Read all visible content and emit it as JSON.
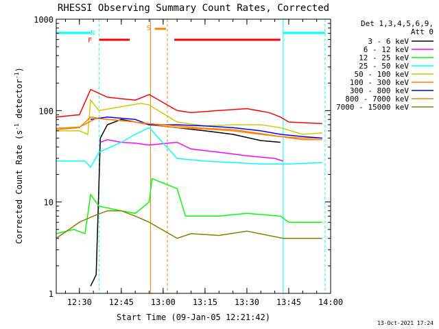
{
  "chart_data": {
    "type": "line",
    "title": "RHESSI Observing Summary Count Rates, Corrected",
    "xlabel": "Start Time (09-Jan-05 12:21:42)",
    "ylabel_prefix": "Corrected Count Rate (s",
    "ylabel_sup1": "-1",
    "ylabel_mid": " detector",
    "ylabel_sup2": "-1",
    "ylabel_suffix": ")",
    "y_scale": "log",
    "ylim": [
      1,
      1000
    ],
    "xlim": [
      "12:21:42",
      "14:00:00"
    ],
    "x_ticks": [
      "12:30",
      "12:45",
      "13:00",
      "13:15",
      "13:30",
      "13:45",
      "14:00"
    ],
    "y_ticks": [
      "1",
      "10",
      "100",
      "1000"
    ],
    "legend_header": [
      "Det 1,3,4,5,6,9,",
      "Att 0"
    ],
    "legend_position": "right",
    "timestamp": "13-Oct-2021 17:24",
    "flags": [
      {
        "label": "N",
        "color": "#00ffff",
        "x": "12:37:00"
      },
      {
        "label": "F",
        "color": "#ff0000",
        "x": "12:36:00"
      },
      {
        "label": "S",
        "color": "#ff8000",
        "x": "12:57:00"
      }
    ],
    "flag_bars": [
      {
        "name": "night",
        "color": "#00ffff",
        "segments": [
          [
            "12:21:42",
            "12:34:00"
          ],
          [
            "13:43:00",
            "13:58:00"
          ]
        ]
      },
      {
        "name": "flare",
        "color": "#ff0000",
        "segments": [
          [
            "12:37:00",
            "12:48:00"
          ],
          [
            "13:04:00",
            "13:42:00"
          ]
        ]
      },
      {
        "name": "saa",
        "color": "#ff8000",
        "segments": [
          [
            "12:57:00",
            "13:01:00"
          ]
        ]
      }
    ],
    "gap_lines": [
      {
        "x": "12:37:00",
        "color": "#00ffff",
        "style": "dashed"
      },
      {
        "x": "12:55:30",
        "color": "#ff8000",
        "style": "solid"
      },
      {
        "x": "13:01:30",
        "color": "#ff8000",
        "style": "dashed"
      },
      {
        "x": "13:43:00",
        "color": "#00ffff",
        "style": "solid"
      },
      {
        "x": "13:58:00",
        "color": "#00ffff",
        "style": "dashed"
      }
    ],
    "series": [
      {
        "name": "3 - 6 keV",
        "color": "#000000",
        "points": [
          [
            "12:34:00",
            1.2
          ],
          [
            "12:36:00",
            1.6
          ],
          [
            "12:37:30",
            50
          ],
          [
            "12:40:00",
            70
          ],
          [
            "12:45:00",
            80
          ],
          [
            "12:50:00",
            75
          ],
          [
            "12:55:00",
            70
          ],
          [
            "13:05:00",
            65
          ],
          [
            "13:15:00",
            60
          ],
          [
            "13:25:00",
            55
          ],
          [
            "13:35:00",
            47
          ],
          [
            "13:42:00",
            45
          ]
        ]
      },
      {
        "name": "6 - 12 keV",
        "color": "#ff00ff",
        "points": [
          [
            "12:37:30",
            45
          ],
          [
            "12:40:00",
            48
          ],
          [
            "12:45:00",
            45
          ],
          [
            "12:50:00",
            44
          ],
          [
            "12:55:00",
            42
          ],
          [
            "13:05:00",
            45
          ],
          [
            "13:10:00",
            38
          ],
          [
            "13:20:00",
            35
          ],
          [
            "13:30:00",
            32
          ],
          [
            "13:40:00",
            30
          ],
          [
            "13:43:00",
            28
          ]
        ]
      },
      {
        "name": "12 - 25 keV",
        "color": "#00ff00",
        "points": [
          [
            "12:21:42",
            4.5
          ],
          [
            "12:28:00",
            5.0
          ],
          [
            "12:32:00",
            4.5
          ],
          [
            "12:34:00",
            12
          ],
          [
            "12:37:00",
            9
          ],
          [
            "12:45:00",
            8
          ],
          [
            "12:50:00",
            7.5
          ],
          [
            "12:55:00",
            10
          ],
          [
            "12:56:00",
            18
          ],
          [
            "13:05:00",
            14
          ],
          [
            "13:08:00",
            7
          ],
          [
            "13:20:00",
            7
          ],
          [
            "13:30:00",
            7.5
          ],
          [
            "13:42:00",
            7
          ],
          [
            "13:45:00",
            6
          ],
          [
            "13:57:00",
            6
          ]
        ]
      },
      {
        "name": "25 - 50 keV",
        "color": "#00ffff",
        "points": [
          [
            "12:21:42",
            28
          ],
          [
            "12:28:00",
            28
          ],
          [
            "12:32:00",
            28
          ],
          [
            "12:34:00",
            24
          ],
          [
            "12:37:00",
            35
          ],
          [
            "12:45:00",
            45
          ],
          [
            "12:50:00",
            55
          ],
          [
            "12:55:00",
            65
          ],
          [
            "13:05:00",
            30
          ],
          [
            "13:15:00",
            28
          ],
          [
            "13:25:00",
            27
          ],
          [
            "13:35:00",
            26
          ],
          [
            "13:45:00",
            26
          ],
          [
            "13:57:00",
            27
          ]
        ]
      },
      {
        "name": "50 - 100 keV",
        "color": "#cccc00",
        "points": [
          [
            "12:21:42",
            60
          ],
          [
            "12:30:00",
            60
          ],
          [
            "12:33:00",
            55
          ],
          [
            "12:34:00",
            130
          ],
          [
            "12:37:00",
            100
          ],
          [
            "12:45:00",
            110
          ],
          [
            "12:52:00",
            120
          ],
          [
            "12:55:00",
            115
          ],
          [
            "13:05:00",
            75
          ],
          [
            "13:15:00",
            68
          ],
          [
            "13:25:00",
            70
          ],
          [
            "13:35:00",
            70
          ],
          [
            "13:42:00",
            65
          ],
          [
            "13:50:00",
            55
          ],
          [
            "13:57:00",
            57
          ]
        ]
      },
      {
        "name": "100 - 300 keV",
        "color": "#ff8000",
        "points": [
          [
            "12:21:42",
            62
          ],
          [
            "12:30:00",
            65
          ],
          [
            "12:34:00",
            85
          ],
          [
            "12:40:00",
            80
          ],
          [
            "12:50:00",
            75
          ],
          [
            "12:55:00",
            70
          ],
          [
            "13:05:00",
            65
          ],
          [
            "13:15:00",
            63
          ],
          [
            "13:25:00",
            60
          ],
          [
            "13:35:00",
            55
          ],
          [
            "13:42:00",
            52
          ],
          [
            "13:50:00",
            50
          ],
          [
            "13:57:00",
            50
          ]
        ]
      },
      {
        "name": "300 - 800 keV",
        "color": "#0000ff",
        "points": [
          [
            "12:34:00",
            80
          ],
          [
            "12:40:00",
            85
          ],
          [
            "12:50:00",
            80
          ],
          [
            "12:55:00",
            70
          ],
          [
            "13:05:00",
            70
          ],
          [
            "13:15:00",
            68
          ],
          [
            "13:25:00",
            65
          ],
          [
            "13:35:00",
            60
          ],
          [
            "13:42:00",
            55
          ],
          [
            "13:50:00",
            52
          ],
          [
            "13:57:00",
            50
          ]
        ]
      },
      {
        "name": "800 - 7000 keV",
        "color": "#ff8000",
        "points": [
          [
            "12:21:42",
            64
          ],
          [
            "12:30:00",
            66
          ],
          [
            "12:36:00",
            82
          ],
          [
            "12:45:00",
            78
          ],
          [
            "12:55:00",
            72
          ],
          [
            "13:05:00",
            68
          ],
          [
            "13:15:00",
            64
          ],
          [
            "13:25:00",
            62
          ],
          [
            "13:35:00",
            56
          ],
          [
            "13:42:00",
            52
          ],
          [
            "13:50:00",
            48
          ],
          [
            "13:57:00",
            48
          ]
        ]
      },
      {
        "name": "7000 - 15000 keV",
        "color": "#808000",
        "points": [
          [
            "12:21:42",
            4.0
          ],
          [
            "12:30:00",
            6
          ],
          [
            "12:35:00",
            7
          ],
          [
            "12:40:00",
            8
          ],
          [
            "12:45:00",
            8
          ],
          [
            "12:50:00",
            7
          ],
          [
            "12:55:00",
            6
          ],
          [
            "13:05:00",
            4
          ],
          [
            "13:10:00",
            4.5
          ],
          [
            "13:20:00",
            4.3
          ],
          [
            "13:30:00",
            4.8
          ],
          [
            "13:43:00",
            4
          ],
          [
            "13:50:00",
            4.0
          ],
          [
            "13:57:00",
            4.0
          ]
        ]
      },
      {
        "name": "red_flare_band",
        "color": "#ff0000",
        "legend": false,
        "points": [
          [
            "12:21:42",
            85
          ],
          [
            "12:30:00",
            90
          ],
          [
            "12:34:00",
            170
          ],
          [
            "12:40:00",
            140
          ],
          [
            "12:45:00",
            135
          ],
          [
            "12:50:00",
            130
          ],
          [
            "12:55:00",
            150
          ],
          [
            "13:05:00",
            100
          ],
          [
            "13:10:00",
            95
          ],
          [
            "13:20:00",
            100
          ],
          [
            "13:30:00",
            105
          ],
          [
            "13:38:00",
            95
          ],
          [
            "13:42:00",
            85
          ],
          [
            "13:45:00",
            75
          ],
          [
            "13:57:00",
            72
          ]
        ]
      }
    ]
  }
}
